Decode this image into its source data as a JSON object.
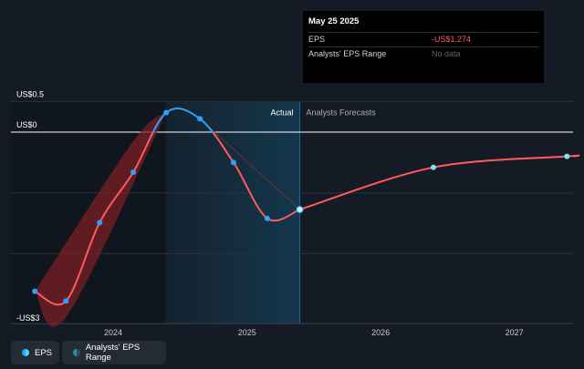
{
  "chart_data": {
    "type": "line",
    "y_axis_labels": [
      {
        "text": "US$0.5",
        "value": 0.5
      },
      {
        "text": "US$0",
        "value": 0
      },
      {
        "text": "-US$3",
        "value": -3
      }
    ],
    "ylim": [
      -3,
      0.5
    ],
    "xlim": [
      "2023-05-01",
      "2027-06-30"
    ],
    "x_ticks": [
      {
        "label": "2024",
        "date": "2024-01-01"
      },
      {
        "label": "2025",
        "date": "2025-01-01"
      },
      {
        "label": "2026",
        "date": "2026-01-01"
      },
      {
        "label": "2027",
        "date": "2027-01-01"
      }
    ],
    "actual_cutoff_date": "2025-05-25",
    "actual_shade_start": "2024-05-25",
    "region_labels": {
      "actual": "Actual",
      "forecast": "Analysts Forecasts"
    },
    "series": [
      {
        "name": "EPS",
        "color_past": "#2aa2ff",
        "color_negative": "#ff5a5f",
        "points": [
          {
            "date": "2023-06-01",
            "value": -2.62
          },
          {
            "date": "2023-08-25",
            "value": -2.78
          },
          {
            "date": "2023-11-25",
            "value": -1.49
          },
          {
            "date": "2024-02-25",
            "value": -0.66
          },
          {
            "date": "2024-05-25",
            "value": 0.32
          },
          {
            "date": "2024-08-25",
            "value": 0.22
          },
          {
            "date": "2024-11-25",
            "value": -0.5
          },
          {
            "date": "2025-02-25",
            "value": -1.42
          },
          {
            "date": "2025-05-25",
            "value": -1.274
          }
        ]
      },
      {
        "name": "EPS Forecast",
        "color": "#ff5a5f",
        "points": [
          {
            "date": "2025-05-25",
            "value": -1.274
          },
          {
            "date": "2026-05-25",
            "value": -0.58
          },
          {
            "date": "2027-05-25",
            "value": -0.4
          }
        ]
      },
      {
        "name": "Analysts' EPS Range",
        "band_upper": [
          {
            "date": "2023-06-01",
            "value": -2.62
          },
          {
            "date": "2024-02-25",
            "value": -0.15
          },
          {
            "date": "2024-05-25",
            "value": 0.32
          }
        ],
        "band_lower": [
          {
            "date": "2023-06-01",
            "value": -2.62
          },
          {
            "date": "2023-08-25",
            "value": -3.05
          },
          {
            "date": "2024-05-25",
            "value": 0.32
          }
        ]
      }
    ],
    "grid": true
  },
  "tooltip": {
    "date": "May 25 2025",
    "rows": [
      {
        "label": "EPS",
        "value": "-US$1.274"
      },
      {
        "label": "Analysts' EPS Range",
        "value": "No data"
      }
    ]
  },
  "legend": {
    "items": [
      {
        "label": "EPS"
      },
      {
        "label": "Analysts' EPS Range"
      }
    ]
  },
  "colors": {
    "background": "#151b24",
    "forecast_shade": "#13384f",
    "grid": "#2a313b",
    "zero_line": "#ffffff"
  }
}
